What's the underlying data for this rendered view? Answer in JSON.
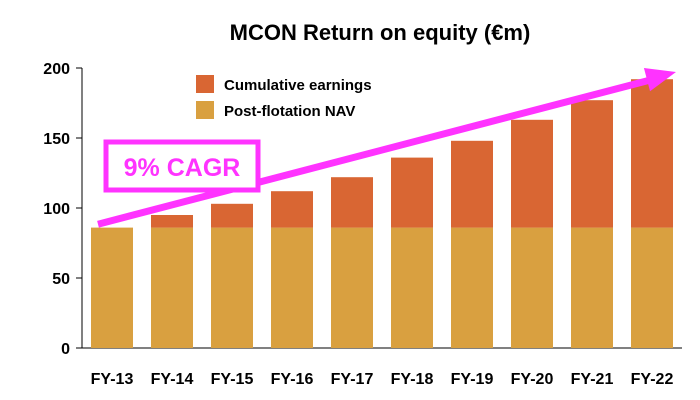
{
  "chart_data": {
    "type": "bar",
    "stacked": true,
    "title": "MCON Return on equity (€m)",
    "xlabel": "",
    "ylabel": "",
    "categories": [
      "FY-13",
      "FY-14",
      "FY-15",
      "FY-16",
      "FY-17",
      "FY-18",
      "FY-19",
      "FY-20",
      "FY-21",
      "FY-22"
    ],
    "series": [
      {
        "name": "Post-flotation NAV",
        "color": "#d9a040",
        "values": [
          86,
          86,
          86,
          86,
          86,
          86,
          86,
          86,
          86,
          86
        ]
      },
      {
        "name": "Cumulative earnings",
        "color": "#d96633",
        "values": [
          0,
          9,
          17,
          26,
          36,
          50,
          62,
          77,
          91,
          106
        ]
      }
    ],
    "ylim": [
      0,
      200
    ],
    "yticks": [
      0,
      50,
      100,
      150,
      200
    ],
    "grid": false,
    "legend_position": "top-left",
    "annotation": {
      "text": "9% CAGR",
      "color": "#ff33ff",
      "arrow_from": {
        "category": "FY-13",
        "value": 92
      },
      "arrow_to": {
        "category": "FY-22",
        "value": 195
      }
    }
  }
}
